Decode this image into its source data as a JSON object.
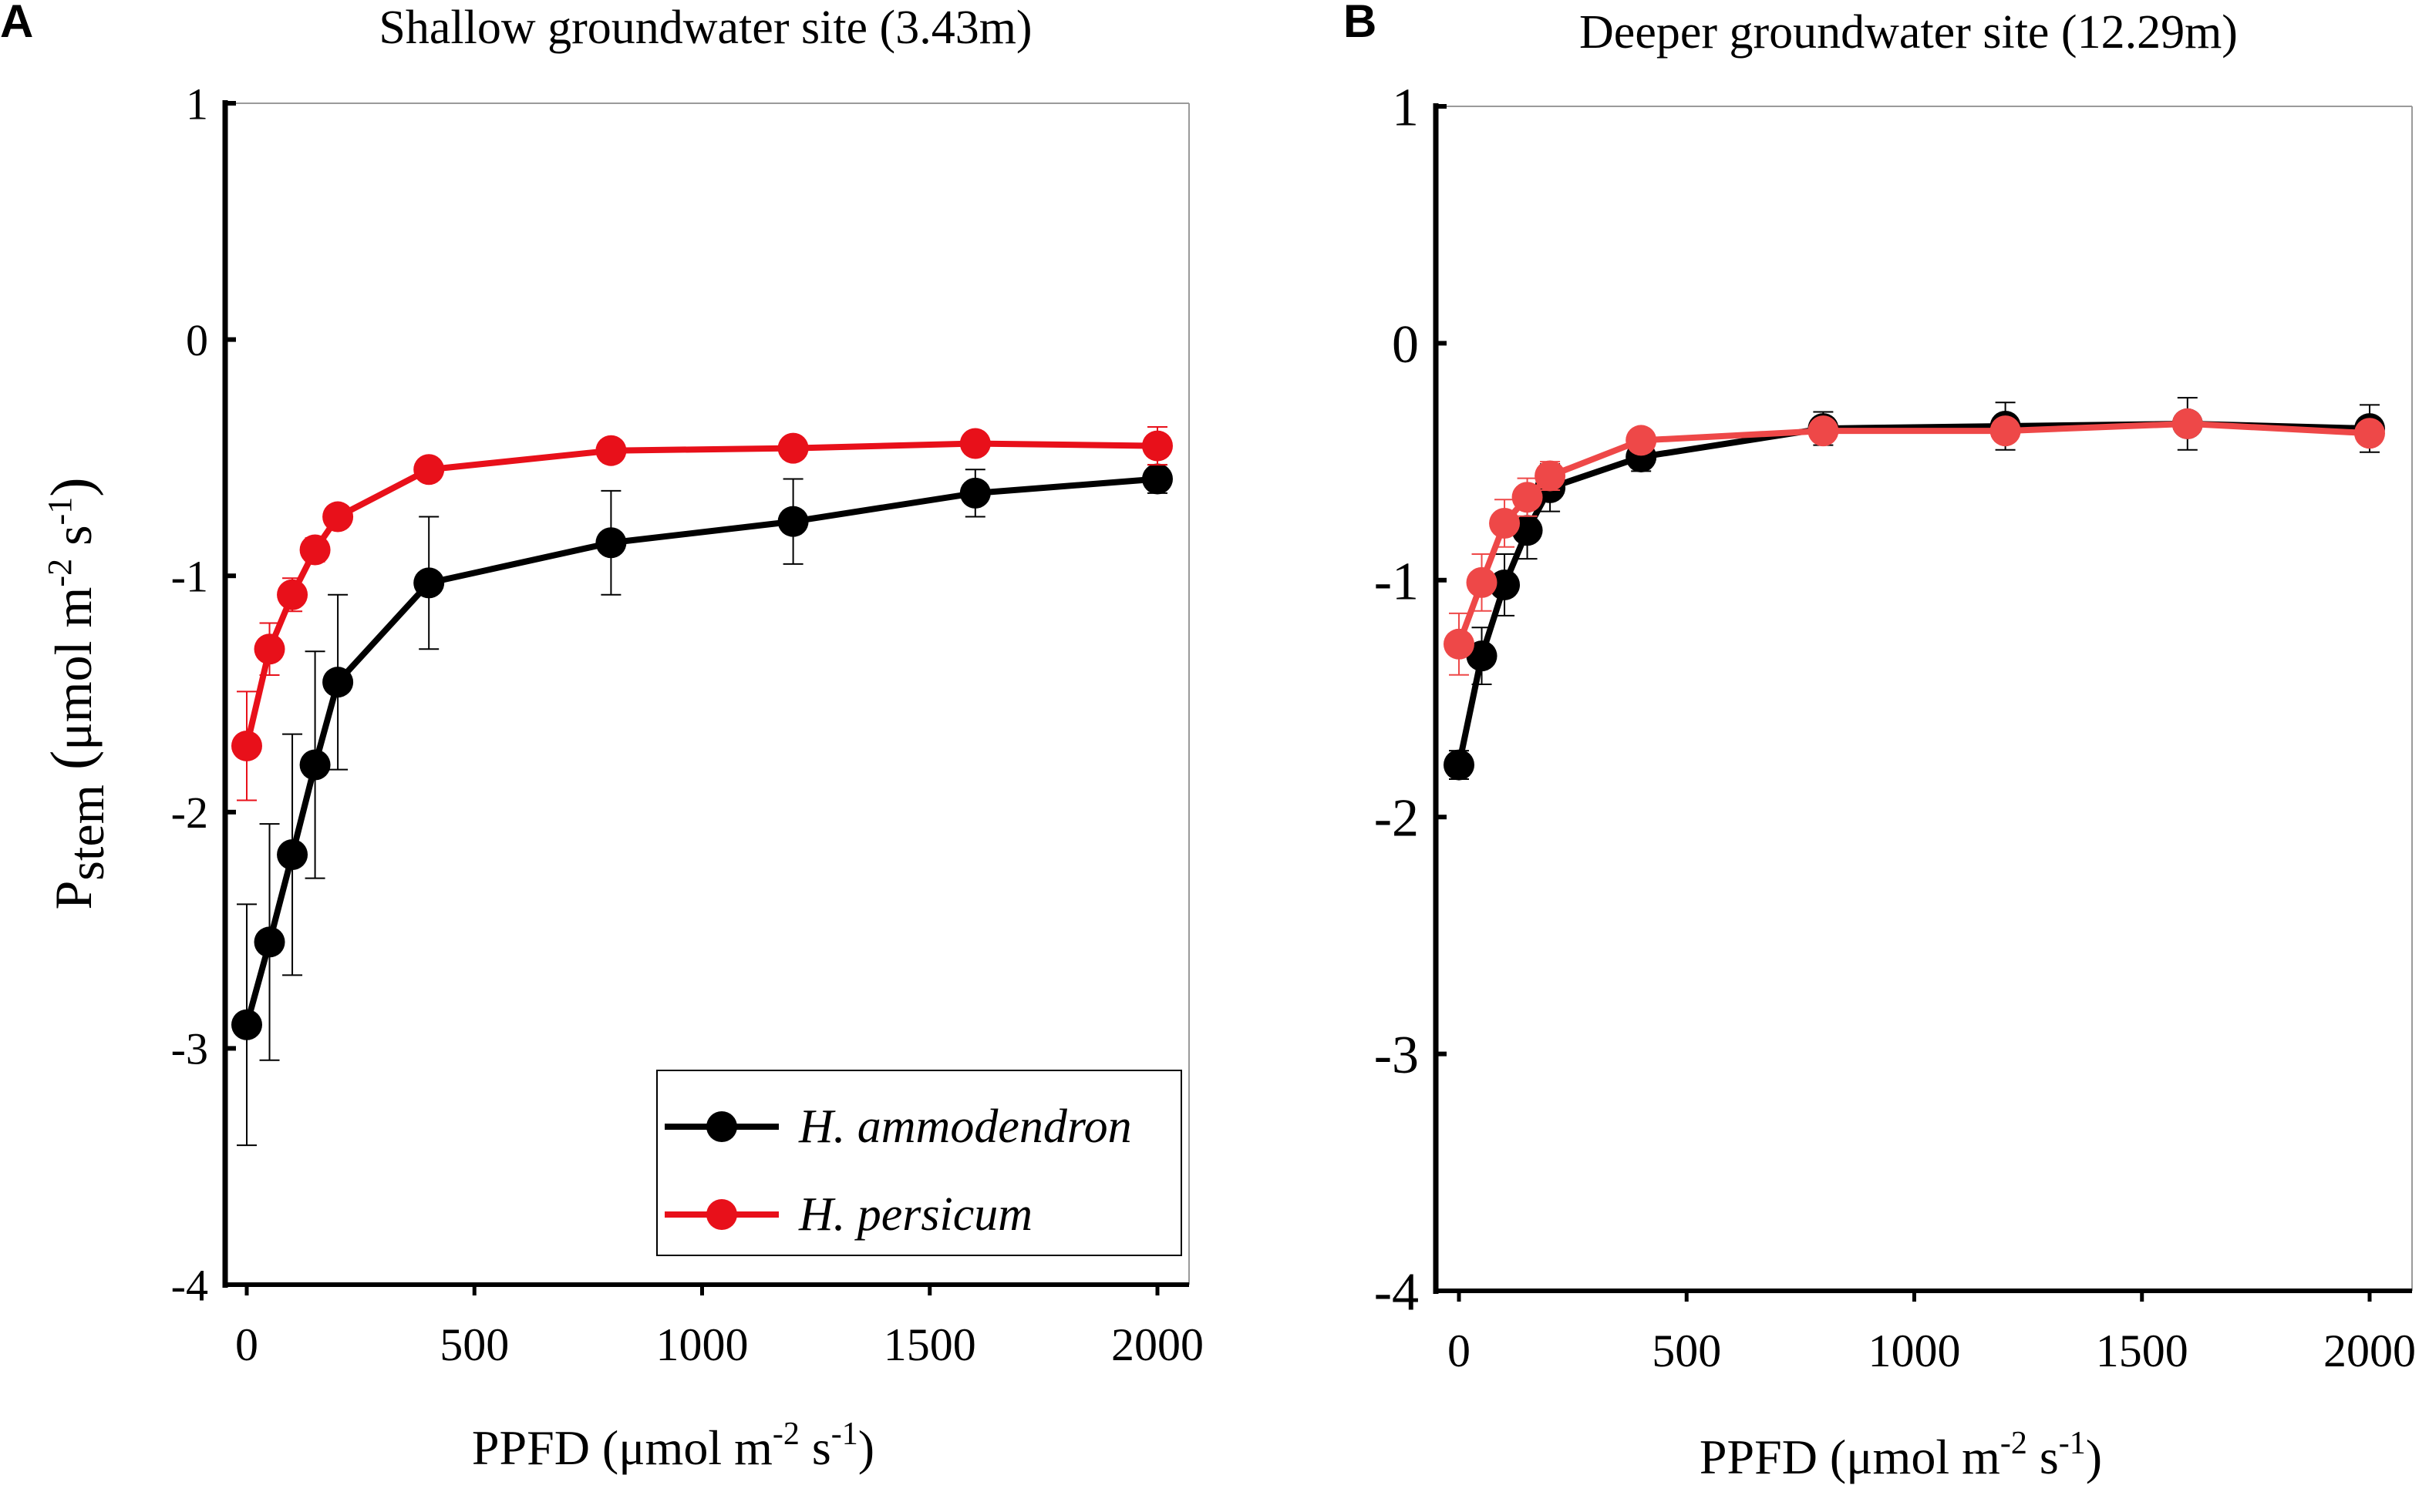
{
  "chart_data": [
    {
      "panel_letter": "A",
      "type": "line",
      "title": "Shallow groundwater site (3.43m)",
      "xlabel": "PPFD (μmol m",
      "xlabel_sup1": "-2",
      "xlabel_mid": " s",
      "xlabel_sup2": "-1",
      "xlabel_end": ")",
      "ylabel_main": "P",
      "ylabel_sub": "stem",
      "ylabel_unit": "μmol m",
      "ylabel_sup1": "-2",
      "ylabel_mid": " s",
      "ylabel_sup2": "-1",
      "xlim": [
        -50,
        2100
      ],
      "ylim": [
        -4,
        1
      ],
      "xticks": [
        0,
        500,
        1000,
        1500,
        2000
      ],
      "xtick_labels": [
        "0",
        "500",
        "1000",
        "1500",
        "2000"
      ],
      "yticks": [
        1,
        0,
        -1,
        -2,
        -3,
        -4
      ],
      "ytick_labels": [
        "1",
        "0",
        "-1",
        "-2",
        "-3",
        "-4"
      ],
      "legend": {
        "placement": "bottom-right",
        "entries": [
          "H. ammodendron",
          "H. persicum"
        ]
      },
      "x": [
        0,
        50,
        100,
        150,
        200,
        400,
        800,
        1200,
        1600,
        2000
      ],
      "series": [
        {
          "name": "H. ammodendron",
          "color": "#000000",
          "values": [
            -2.9,
            -2.55,
            -2.18,
            -1.8,
            -1.45,
            -1.03,
            -0.86,
            -0.77,
            -0.65,
            -0.59
          ],
          "errors": [
            0.51,
            0.5,
            0.51,
            0.48,
            0.37,
            0.28,
            0.22,
            0.18,
            0.1,
            0.06
          ]
        },
        {
          "name": "H. persicum",
          "color": "#e8101a",
          "values": [
            -1.72,
            -1.31,
            -1.08,
            -0.89,
            -0.75,
            -0.55,
            -0.47,
            -0.46,
            -0.44,
            -0.45
          ],
          "errors": [
            0.23,
            0.11,
            0.07,
            0.05,
            0.04,
            0.03,
            0.03,
            0.03,
            0.03,
            0.08
          ]
        }
      ]
    },
    {
      "panel_letter": "B",
      "type": "line",
      "title": "Deeper groundwater site (12.29m)",
      "xlabel": "PPFD (μmol m",
      "xlabel_sup1": "-2",
      "xlabel_mid": " s",
      "xlabel_sup2": "-1",
      "xlabel_end": ")",
      "xlim": [
        -50,
        2100
      ],
      "ylim": [
        -4,
        1
      ],
      "xticks": [
        0,
        500,
        1000,
        1500,
        2000
      ],
      "xtick_labels": [
        "0",
        "500",
        "1000",
        "1500",
        "2000"
      ],
      "yticks": [
        1,
        0,
        -1,
        -2,
        -3,
        -4
      ],
      "ytick_labels": [
        "1",
        "0",
        "-1",
        "-2",
        "-3",
        "-4"
      ],
      "x": [
        0,
        50,
        100,
        150,
        200,
        400,
        800,
        1200,
        1600,
        2000
      ],
      "series": [
        {
          "name": "H. ammodendron",
          "color": "#000000",
          "values": [
            -1.78,
            -1.32,
            -1.02,
            -0.79,
            -0.61,
            -0.48,
            -0.36,
            -0.35,
            -0.34,
            -0.36
          ],
          "errors": [
            0.06,
            0.12,
            0.13,
            0.12,
            0.1,
            0.06,
            0.07,
            0.1,
            0.11,
            0.1
          ]
        },
        {
          "name": "H. persicum",
          "color": "#ee4848",
          "values": [
            -1.27,
            -1.01,
            -0.76,
            -0.65,
            -0.56,
            -0.41,
            -0.37,
            -0.37,
            -0.34,
            -0.38
          ],
          "errors": [
            0.13,
            0.12,
            0.1,
            0.08,
            0.06,
            0.04,
            0.03,
            0.03,
            0.03,
            0.04
          ]
        }
      ]
    }
  ]
}
